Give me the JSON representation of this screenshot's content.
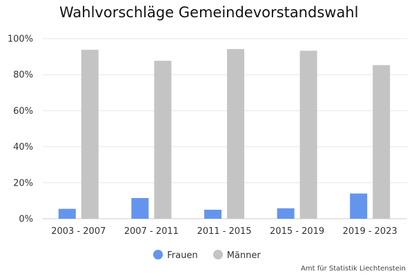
{
  "source": "Amt für Statistik Liechtenstein",
  "colors": {
    "frauen": "#6495ed",
    "maenner": "#c4c4c4",
    "grid": "#e6e6e6",
    "axis": "#cccccc"
  },
  "chart_data": {
    "type": "bar",
    "title": "Wahlvorschläge Gemeindevorstandswahl",
    "xlabel": "",
    "ylabel": "",
    "ylim": [
      0,
      100
    ],
    "yticks": [
      "0%",
      "20%",
      "40%",
      "60%",
      "80%",
      "100%"
    ],
    "ytick_values": [
      0,
      20,
      40,
      60,
      80,
      100
    ],
    "grid": true,
    "legend": "bottom",
    "categories": [
      "2003 - 2007",
      "2007 - 2011",
      "2011 - 2015",
      "2015 - 2019",
      "2019 - 2023"
    ],
    "series": [
      {
        "name": "Frauen",
        "values": [
          5.5,
          11.5,
          5.0,
          5.8,
          14.0
        ]
      },
      {
        "name": "Männer",
        "values": [
          93.8,
          87.7,
          94.2,
          93.3,
          85.3
        ]
      }
    ]
  }
}
